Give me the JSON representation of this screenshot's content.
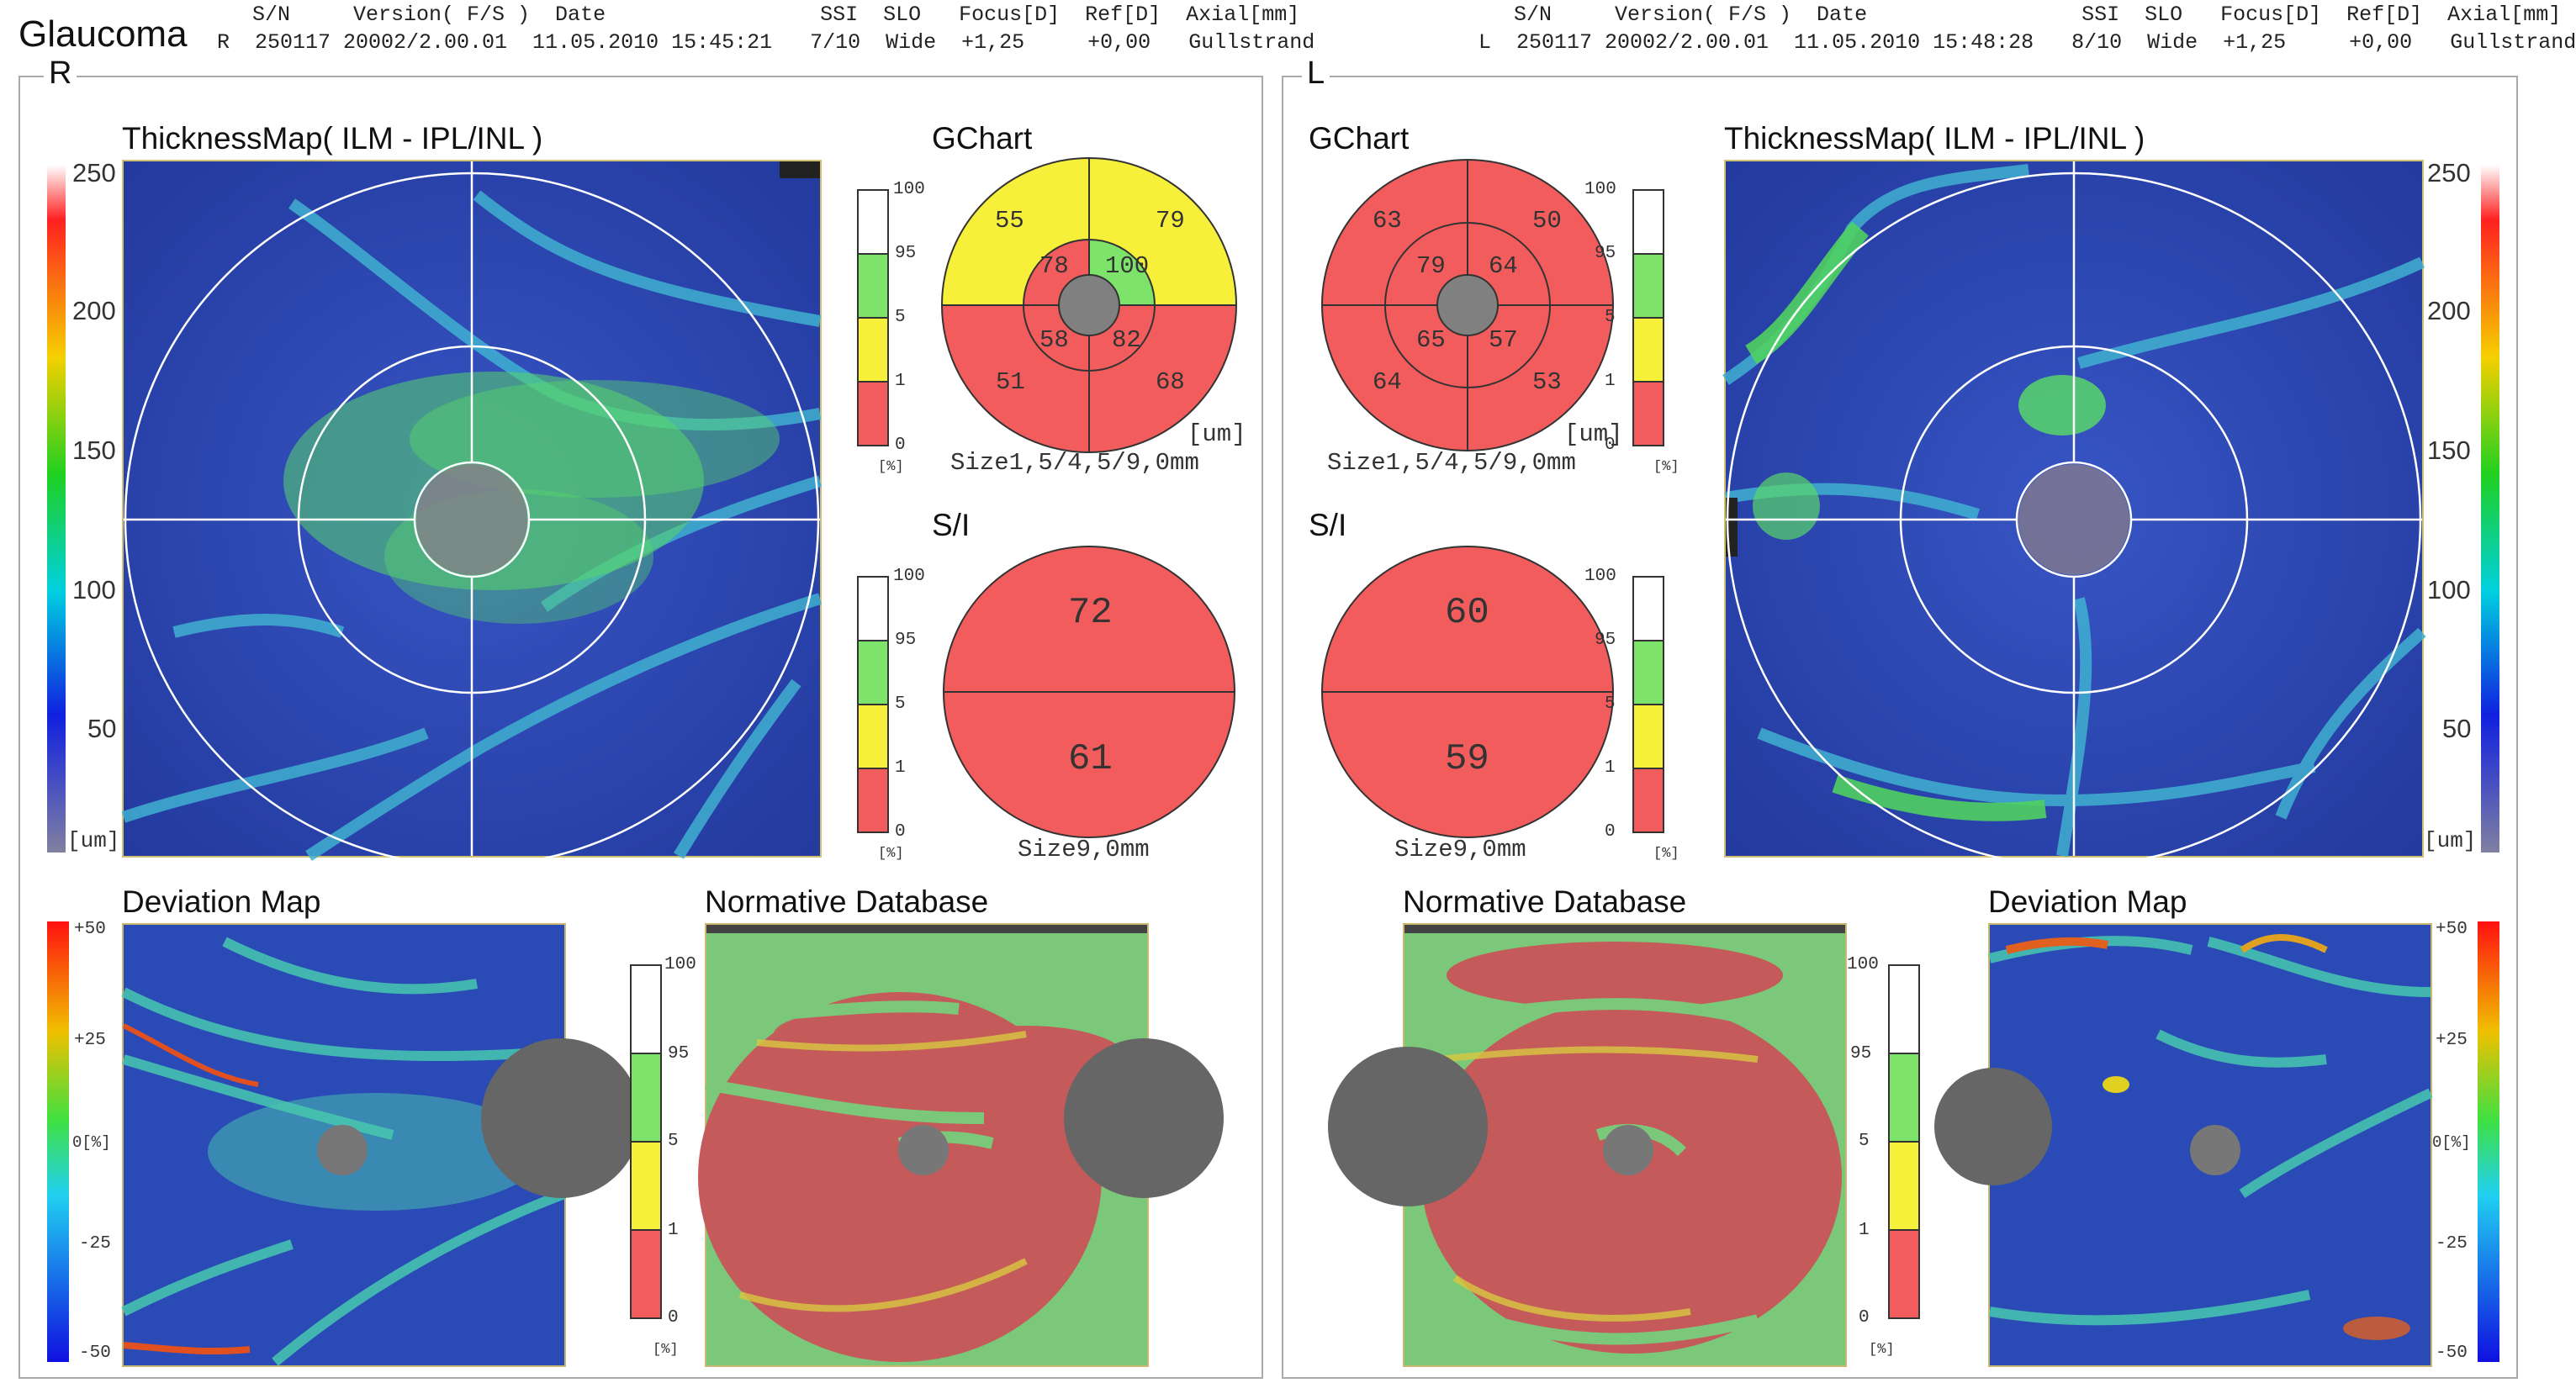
{
  "report": {
    "title": "Glaucoma"
  },
  "header": {
    "right_eye": {
      "labels": "S/N     Version( F/S )  Date                 SSI  SLO   Focus[D]  Ref[D]  Axial[mm]",
      "values": "R  250117 20002/2.00.01  11.05.2010 15:45:21   7/10  Wide  +1,25     +0,00   Gullstrand"
    },
    "left_eye": {
      "labels": "S/N     Version( F/S )  Date                 SSI  SLO   Focus[D]  Ref[D]  Axial[mm]",
      "values": "L  250117 20002/2.00.01  11.05.2010 15:48:28   8/10  Wide  +1,25     +0,00   Gullstrand"
    }
  },
  "right_panel": {
    "eye_label": "R",
    "thickness_map_title": "ThicknessMap( ILM - IPL/INL )",
    "thickness_scale": [
      "250",
      "200",
      "150",
      "100",
      "50",
      "[um]"
    ],
    "gchart_title": "GChart",
    "gchart_percent_scale": [
      "100",
      "95",
      "5",
      "1",
      "0",
      "[%]"
    ],
    "gchart": {
      "outer": {
        "sup_temporal": "55",
        "sup_nasal": "79",
        "inf_temporal": "51",
        "inf_nasal": "68"
      },
      "inner": {
        "sup_temporal": "78",
        "sup_nasal": "100",
        "inf_temporal": "58",
        "inf_nasal": "82"
      },
      "unit": "[um]",
      "caption": "Size1,5/4,5/9,0mm"
    },
    "si_title": "S/I",
    "si_percent_scale": [
      "100",
      "95",
      "5",
      "1",
      "0",
      "[%]"
    ],
    "si": {
      "superior": "72",
      "inferior": "61",
      "caption": "Size9,0mm"
    },
    "deviation_title": "Deviation Map",
    "deviation_scale": [
      "+50",
      "+25",
      "0[%]",
      "-25",
      "-50"
    ],
    "normative_title": "Normative Database",
    "normative_scale": [
      "100",
      "95",
      "5",
      "1",
      "0",
      "[%]"
    ]
  },
  "left_panel": {
    "eye_label": "L",
    "thickness_map_title": "ThicknessMap( ILM - IPL/INL )",
    "thickness_scale": [
      "250",
      "200",
      "150",
      "100",
      "50",
      "[um]"
    ],
    "gchart_title": "GChart",
    "gchart_percent_scale": [
      "100",
      "95",
      "5",
      "1",
      "0",
      "[%]"
    ],
    "gchart": {
      "outer": {
        "sup_left": "63",
        "sup_right": "50",
        "inf_left": "64",
        "inf_right": "53"
      },
      "inner": {
        "sup_left": "79",
        "sup_right": "64",
        "inf_left": "65",
        "inf_right": "57"
      },
      "unit": "[um]",
      "caption": "Size1,5/4,5/9,0mm"
    },
    "si_title": "S/I",
    "si_percent_scale": [
      "100",
      "95",
      "5",
      "1",
      "0",
      "[%]"
    ],
    "si": {
      "superior": "60",
      "inferior": "59",
      "caption": "Size9,0mm"
    },
    "deviation_title": "Deviation Map",
    "deviation_scale": [
      "+50",
      "+25",
      "0[%]",
      "-25",
      "-50"
    ],
    "normative_title": "Normative Database",
    "normative_scale": [
      "100",
      "95",
      "5",
      "1",
      "0",
      "[%]"
    ]
  },
  "colors": {
    "outside_normal_red": "#f25c5c",
    "borderline_yellow": "#f7f03a",
    "normal_green": "#7ee36a",
    "map_blue": "#2a3fb0",
    "map_green": "#58d66a",
    "normative_red": "#c45a5a",
    "normative_green": "#7cc87a",
    "disc_gray": "#777777"
  }
}
